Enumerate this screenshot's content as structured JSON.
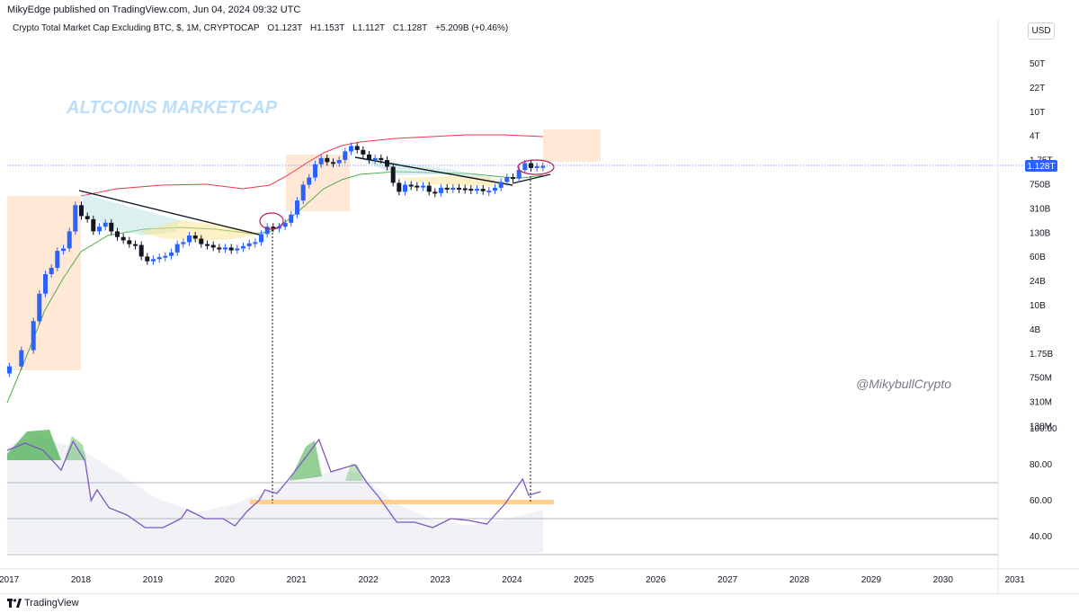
{
  "header": {
    "published": "MikyEdge published on TradingView.com, Jun 04, 2024 09:32 UTC",
    "symbol": "Crypto Total Market Cap Excluding BTC, $, 1M, CRYPTOCAP",
    "open": "O1.123T",
    "high": "H1.153T",
    "low": "L1.112T",
    "close": "C1.128T",
    "change": "+5.209B (+0.46%)",
    "currency": "USD"
  },
  "watermark_title": "ALTCOINS MARKETCAP",
  "watermark_handle": "@MikybullCrypto",
  "footer": {
    "brand": "TradingView"
  },
  "colors": {
    "up": "#2962ff",
    "down": "#131722",
    "upper_band": "#f23645",
    "lower_band": "#4caf50",
    "rsi_line": "#7e57c2",
    "highlight_box": "#ffe0c4",
    "price_tag": "#2962ff",
    "rsi_band": "#ffcc80"
  },
  "chart_data": [
    {
      "type": "candlestick",
      "title": "Crypto Total Market Cap Excluding BTC",
      "y_scale": "log",
      "y_tick_labels": [
        "50T",
        "22T",
        "10T",
        "4T",
        "1.75T",
        "750B",
        "310B",
        "130B",
        "60B",
        "24B",
        "10B",
        "4B",
        "1.75B",
        "750M",
        "310M",
        "130M"
      ],
      "x_tick_labels": [
        "2017",
        "2018",
        "2019",
        "2020",
        "2021",
        "2022",
        "2023",
        "2024",
        "2025",
        "2026",
        "2027",
        "2028",
        "2029",
        "2030",
        "2031"
      ],
      "last_price_label": "1.128T",
      "candles_close_usd": [
        {
          "date": "2017-01",
          "o": 700000000.0,
          "c": 900000000.0
        },
        {
          "date": "2017-03",
          "o": 900000000.0,
          "c": 1600000000.0
        },
        {
          "date": "2017-05",
          "o": 1600000000.0,
          "c": 4500000000.0
        },
        {
          "date": "2017-06",
          "o": 4500000000.0,
          "c": 12000000000.0
        },
        {
          "date": "2017-07",
          "o": 12000000000.0,
          "c": 24000000000.0
        },
        {
          "date": "2017-08",
          "o": 24000000000.0,
          "c": 30000000000.0
        },
        {
          "date": "2017-09",
          "o": 30000000000.0,
          "c": 55000000000.0
        },
        {
          "date": "2017-10",
          "o": 55000000000.0,
          "c": 60000000000.0
        },
        {
          "date": "2017-11",
          "o": 60000000000.0,
          "c": 110000000000.0
        },
        {
          "date": "2017-12",
          "o": 110000000000.0,
          "c": 280000000000.0
        },
        {
          "date": "2018-01",
          "o": 280000000000.0,
          "c": 190000000000.0
        },
        {
          "date": "2018-02",
          "o": 190000000000.0,
          "c": 170000000000.0
        },
        {
          "date": "2018-03",
          "o": 170000000000.0,
          "c": 110000000000.0
        },
        {
          "date": "2018-04",
          "o": 110000000000.0,
          "c": 130000000000.0
        },
        {
          "date": "2018-05",
          "o": 130000000000.0,
          "c": 150000000000.0
        },
        {
          "date": "2018-06",
          "o": 150000000000.0,
          "c": 110000000000.0
        },
        {
          "date": "2018-07",
          "o": 110000000000.0,
          "c": 90000000000.0
        },
        {
          "date": "2018-08",
          "o": 90000000000.0,
          "c": 80000000000.0
        },
        {
          "date": "2018-09",
          "o": 80000000000.0,
          "c": 70000000000.0
        },
        {
          "date": "2018-10",
          "o": 70000000000.0,
          "c": 68000000000.0
        },
        {
          "date": "2018-11",
          "o": 68000000000.0,
          "c": 45000000000.0
        },
        {
          "date": "2018-12",
          "o": 45000000000.0,
          "c": 38000000000.0
        },
        {
          "date": "2019-01",
          "o": 38000000000.0,
          "c": 41000000000.0
        },
        {
          "date": "2019-02",
          "o": 41000000000.0,
          "c": 44000000000.0
        },
        {
          "date": "2019-03",
          "o": 44000000000.0,
          "c": 46000000000.0
        },
        {
          "date": "2019-04",
          "o": 46000000000.0,
          "c": 52000000000.0
        },
        {
          "date": "2019-05",
          "o": 52000000000.0,
          "c": 70000000000.0
        },
        {
          "date": "2019-06",
          "o": 70000000000.0,
          "c": 75000000000.0
        },
        {
          "date": "2019-07",
          "o": 75000000000.0,
          "c": 95000000000.0
        },
        {
          "date": "2019-08",
          "o": 95000000000.0,
          "c": 85000000000.0
        },
        {
          "date": "2019-09",
          "o": 85000000000.0,
          "c": 70000000000.0
        },
        {
          "date": "2019-10",
          "o": 70000000000.0,
          "c": 68000000000.0
        },
        {
          "date": "2019-11",
          "o": 68000000000.0,
          "c": 62000000000.0
        },
        {
          "date": "2019-12",
          "o": 62000000000.0,
          "c": 58000000000.0
        },
        {
          "date": "2020-01",
          "o": 58000000000.0,
          "c": 62000000000.0
        },
        {
          "date": "2020-02",
          "o": 62000000000.0,
          "c": 56000000000.0
        },
        {
          "date": "2020-03",
          "o": 56000000000.0,
          "c": 60000000000.0
        },
        {
          "date": "2020-04",
          "o": 60000000000.0,
          "c": 65000000000.0
        },
        {
          "date": "2020-05",
          "o": 65000000000.0,
          "c": 72000000000.0
        },
        {
          "date": "2020-06",
          "o": 72000000000.0,
          "c": 75000000000.0
        },
        {
          "date": "2020-07",
          "o": 75000000000.0,
          "c": 100000000000.0
        },
        {
          "date": "2020-08",
          "o": 100000000000.0,
          "c": 130000000000.0
        },
        {
          "date": "2020-09",
          "o": 130000000000.0,
          "c": 125000000000.0
        },
        {
          "date": "2020-10",
          "o": 125000000000.0,
          "c": 130000000000.0
        },
        {
          "date": "2020-11",
          "o": 130000000000.0,
          "c": 150000000000.0
        },
        {
          "date": "2020-12",
          "o": 150000000000.0,
          "c": 200000000000.0
        },
        {
          "date": "2021-01",
          "o": 200000000000.0,
          "c": 330000000000.0
        },
        {
          "date": "2021-02",
          "o": 330000000000.0,
          "c": 580000000000.0
        },
        {
          "date": "2021-03",
          "o": 580000000000.0,
          "c": 750000000000.0
        },
        {
          "date": "2021-04",
          "o": 750000000000.0,
          "c": 1200000000000.0
        },
        {
          "date": "2021-05",
          "o": 1200000000000.0,
          "c": 1500000000000.0
        },
        {
          "date": "2021-06",
          "o": 1500000000000.0,
          "c": 1300000000000.0
        },
        {
          "date": "2021-07",
          "o": 1300000000000.0,
          "c": 1250000000000.0
        },
        {
          "date": "2021-08",
          "o": 1250000000000.0,
          "c": 1400000000000.0
        },
        {
          "date": "2021-09",
          "o": 1400000000000.0,
          "c": 1900000000000.0
        },
        {
          "date": "2021-10",
          "o": 1900000000000.0,
          "c": 2300000000000.0
        },
        {
          "date": "2021-11",
          "o": 2300000000000.0,
          "c": 2000000000000.0
        },
        {
          "date": "2021-12",
          "o": 2000000000000.0,
          "c": 1700000000000.0
        },
        {
          "date": "2022-01",
          "o": 1700000000000.0,
          "c": 1400000000000.0
        },
        {
          "date": "2022-02",
          "o": 1400000000000.0,
          "c": 1500000000000.0
        },
        {
          "date": "2022-03",
          "o": 1500000000000.0,
          "c": 1400000000000.0
        },
        {
          "date": "2022-04",
          "o": 1400000000000.0,
          "c": 1100000000000.0
        },
        {
          "date": "2022-05",
          "o": 1100000000000.0,
          "c": 620000000000.0
        },
        {
          "date": "2022-06",
          "o": 620000000000.0,
          "c": 450000000000.0
        },
        {
          "date": "2022-07",
          "o": 450000000000.0,
          "c": 580000000000.0
        },
        {
          "date": "2022-08",
          "o": 580000000000.0,
          "c": 560000000000.0
        },
        {
          "date": "2022-09",
          "o": 560000000000.0,
          "c": 540000000000.0
        },
        {
          "date": "2022-10",
          "o": 540000000000.0,
          "c": 560000000000.0
        },
        {
          "date": "2022-11",
          "o": 560000000000.0,
          "c": 450000000000.0
        },
        {
          "date": "2022-12",
          "o": 450000000000.0,
          "c": 430000000000.0
        },
        {
          "date": "2023-01",
          "o": 430000000000.0,
          "c": 520000000000.0
        },
        {
          "date": "2023-02",
          "o": 520000000000.0,
          "c": 510000000000.0
        },
        {
          "date": "2023-03",
          "o": 510000000000.0,
          "c": 520000000000.0
        },
        {
          "date": "2023-04",
          "o": 520000000000.0,
          "c": 510000000000.0
        },
        {
          "date": "2023-05",
          "o": 510000000000.0,
          "c": 500000000000.0
        },
        {
          "date": "2023-06",
          "o": 500000000000.0,
          "c": 490000000000.0
        },
        {
          "date": "2023-07",
          "o": 490000000000.0,
          "c": 500000000000.0
        },
        {
          "date": "2023-08",
          "o": 500000000000.0,
          "c": 460000000000.0
        },
        {
          "date": "2023-09",
          "o": 460000000000.0,
          "c": 470000000000.0
        },
        {
          "date": "2023-10",
          "o": 470000000000.0,
          "c": 520000000000.0
        },
        {
          "date": "2023-11",
          "o": 520000000000.0,
          "c": 640000000000.0
        },
        {
          "date": "2023-12",
          "o": 640000000000.0,
          "c": 760000000000.0
        },
        {
          "date": "2024-01",
          "o": 760000000000.0,
          "c": 720000000000.0
        },
        {
          "date": "2024-02",
          "o": 720000000000.0,
          "c": 980000000000.0
        },
        {
          "date": "2024-03",
          "o": 980000000000.0,
          "c": 1250000000000.0
        },
        {
          "date": "2024-04",
          "o": 1250000000000.0,
          "c": 1050000000000.0
        },
        {
          "date": "2024-05",
          "o": 1050000000000.0,
          "c": 1120000000000.0
        },
        {
          "date": "2024-06",
          "o": 1120000000000.0,
          "c": 1128000000000.0
        }
      ]
    },
    {
      "type": "line",
      "title": "",
      "y_tick_labels": [
        "100.00",
        "80.00",
        "60.00",
        "40.00"
      ],
      "y_ticks": [
        100,
        80,
        60,
        40
      ],
      "reference_levels": [
        70,
        50,
        30
      ],
      "series": [
        {
          "values": [
            {
              "date": "2017-01",
              "v": 88
            },
            {
              "date": "2017-04",
              "v": 92
            },
            {
              "date": "2017-07",
              "v": 88
            },
            {
              "date": "2017-10",
              "v": 77
            },
            {
              "date": "2017-12",
              "v": 93
            },
            {
              "date": "2018-02",
              "v": 82
            },
            {
              "date": "2018-03",
              "v": 60
            },
            {
              "date": "2018-04",
              "v": 66
            },
            {
              "date": "2018-06",
              "v": 56
            },
            {
              "date": "2018-09",
              "v": 52
            },
            {
              "date": "2018-12",
              "v": 45
            },
            {
              "date": "2019-03",
              "v": 45
            },
            {
              "date": "2019-06",
              "v": 50
            },
            {
              "date": "2019-07",
              "v": 55
            },
            {
              "date": "2019-10",
              "v": 50
            },
            {
              "date": "2020-01",
              "v": 50
            },
            {
              "date": "2020-03",
              "v": 46
            },
            {
              "date": "2020-05",
              "v": 54
            },
            {
              "date": "2020-07",
              "v": 60
            },
            {
              "date": "2020-08",
              "v": 66
            },
            {
              "date": "2020-10",
              "v": 64
            },
            {
              "date": "2020-12",
              "v": 72
            },
            {
              "date": "2021-03",
              "v": 85
            },
            {
              "date": "2021-05",
              "v": 94
            },
            {
              "date": "2021-07",
              "v": 76
            },
            {
              "date": "2021-09",
              "v": 78
            },
            {
              "date": "2021-11",
              "v": 80
            },
            {
              "date": "2022-01",
              "v": 70
            },
            {
              "date": "2022-03",
              "v": 62
            },
            {
              "date": "2022-06",
              "v": 48
            },
            {
              "date": "2022-09",
              "v": 48
            },
            {
              "date": "2022-12",
              "v": 45
            },
            {
              "date": "2023-03",
              "v": 50
            },
            {
              "date": "2023-06",
              "v": 49
            },
            {
              "date": "2023-09",
              "v": 47
            },
            {
              "date": "2023-12",
              "v": 58
            },
            {
              "date": "2024-03",
              "v": 72
            },
            {
              "date": "2024-04",
              "v": 63
            },
            {
              "date": "2024-06",
              "v": 65
            }
          ]
        }
      ]
    }
  ]
}
